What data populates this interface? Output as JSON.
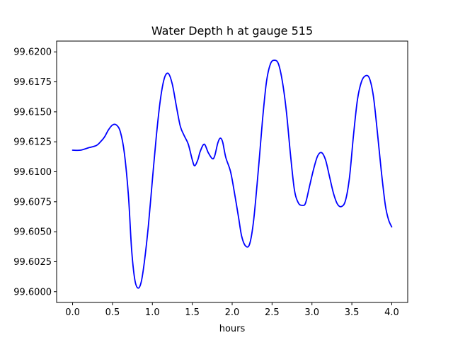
{
  "chart_data": {
    "type": "line",
    "title": "Water Depth h at gauge 515",
    "xlabel": "hours",
    "ylabel": "",
    "xlim": [
      -0.2,
      4.2
    ],
    "ylim": [
      99.5991,
      99.6209
    ],
    "x_ticks": [
      0.0,
      0.5,
      1.0,
      1.5,
      2.0,
      2.5,
      3.0,
      3.5,
      4.0
    ],
    "x_tick_labels": [
      "0.0",
      "0.5",
      "1.0",
      "1.5",
      "2.0",
      "2.5",
      "3.0",
      "3.5",
      "4.0"
    ],
    "y_ticks": [
      99.6,
      99.6025,
      99.605,
      99.6075,
      99.61,
      99.6125,
      99.615,
      99.6175,
      99.62
    ],
    "y_tick_labels": [
      "99.6000",
      "99.6025",
      "99.6050",
      "99.6075",
      "99.6100",
      "99.6125",
      "99.6150",
      "99.6175",
      "99.6200"
    ],
    "grid": false,
    "legend": "none",
    "series": [
      {
        "color": "#0000ff",
        "points": [
          [
            0.0,
            99.6118
          ],
          [
            0.1,
            99.6118
          ],
          [
            0.2,
            99.612
          ],
          [
            0.3,
            99.6122
          ],
          [
            0.35,
            99.6125
          ],
          [
            0.4,
            99.6129
          ],
          [
            0.45,
            99.6135
          ],
          [
            0.5,
            99.6139
          ],
          [
            0.55,
            99.6139
          ],
          [
            0.6,
            99.6133
          ],
          [
            0.65,
            99.6115
          ],
          [
            0.7,
            99.608
          ],
          [
            0.74,
            99.6035
          ],
          [
            0.78,
            99.601
          ],
          [
            0.82,
            99.6003
          ],
          [
            0.86,
            99.6008
          ],
          [
            0.9,
            99.6025
          ],
          [
            0.95,
            99.6055
          ],
          [
            1.0,
            99.6093
          ],
          [
            1.05,
            99.613
          ],
          [
            1.1,
            99.616
          ],
          [
            1.15,
            99.6178
          ],
          [
            1.2,
            99.6182
          ],
          [
            1.25,
            99.6173
          ],
          [
            1.3,
            99.6155
          ],
          [
            1.35,
            99.6138
          ],
          [
            1.4,
            99.613
          ],
          [
            1.45,
            99.6123
          ],
          [
            1.5,
            99.611
          ],
          [
            1.53,
            99.6105
          ],
          [
            1.57,
            99.611
          ],
          [
            1.6,
            99.6117
          ],
          [
            1.65,
            99.6123
          ],
          [
            1.7,
            99.6116
          ],
          [
            1.75,
            99.6111
          ],
          [
            1.78,
            99.6113
          ],
          [
            1.82,
            99.6124
          ],
          [
            1.85,
            99.6128
          ],
          [
            1.88,
            99.6125
          ],
          [
            1.92,
            99.6112
          ],
          [
            1.98,
            99.61
          ],
          [
            2.03,
            99.6082
          ],
          [
            2.08,
            99.6062
          ],
          [
            2.12,
            99.6046
          ],
          [
            2.17,
            99.6038
          ],
          [
            2.22,
            99.604
          ],
          [
            2.27,
            99.606
          ],
          [
            2.33,
            99.6103
          ],
          [
            2.38,
            99.6143
          ],
          [
            2.43,
            99.6175
          ],
          [
            2.48,
            99.619
          ],
          [
            2.53,
            99.6193
          ],
          [
            2.58,
            99.619
          ],
          [
            2.63,
            99.6175
          ],
          [
            2.68,
            99.615
          ],
          [
            2.73,
            99.6115
          ],
          [
            2.78,
            99.6085
          ],
          [
            2.83,
            99.6074
          ],
          [
            2.88,
            99.6072
          ],
          [
            2.92,
            99.6074
          ],
          [
            2.97,
            99.6088
          ],
          [
            3.02,
            99.6102
          ],
          [
            3.07,
            99.6113
          ],
          [
            3.12,
            99.6116
          ],
          [
            3.17,
            99.611
          ],
          [
            3.22,
            99.6096
          ],
          [
            3.27,
            99.6082
          ],
          [
            3.32,
            99.6073
          ],
          [
            3.37,
            99.6071
          ],
          [
            3.42,
            99.6076
          ],
          [
            3.47,
            99.6095
          ],
          [
            3.52,
            99.613
          ],
          [
            3.57,
            99.616
          ],
          [
            3.62,
            99.6175
          ],
          [
            3.67,
            99.618
          ],
          [
            3.72,
            99.6178
          ],
          [
            3.77,
            99.6163
          ],
          [
            3.82,
            99.6133
          ],
          [
            3.87,
            99.61
          ],
          [
            3.92,
            99.6072
          ],
          [
            3.96,
            99.606
          ],
          [
            4.0,
            99.6054
          ]
        ]
      }
    ]
  }
}
